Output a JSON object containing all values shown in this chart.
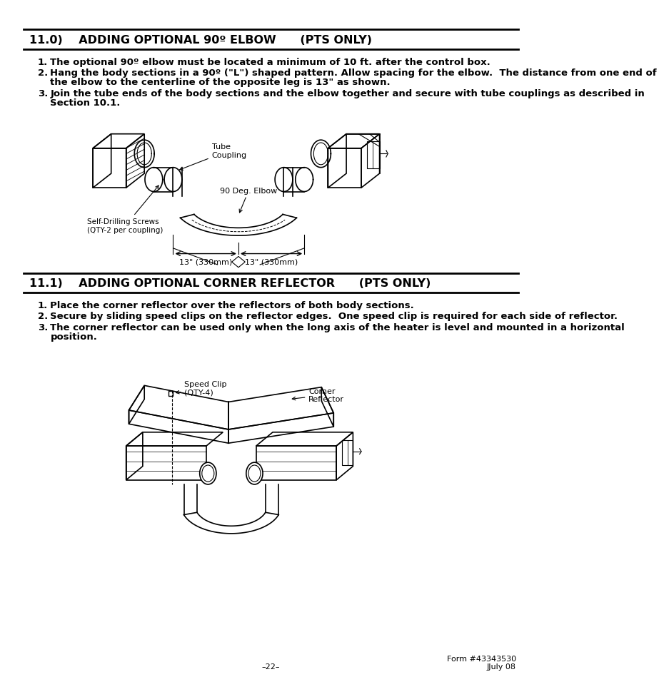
{
  "bg_color": "#ffffff",
  "section1_title": "11.0)    ADDING OPTIONAL 90º ELBOW      (PTS ONLY)",
  "section1_items": [
    "The optional 90º elbow must be located a minimum of 10 ft. after the control box.",
    "Hang the body sections in a 90º (\"L\") shaped pattern. Allow spacing for the elbow.  The distance from one end of\nthe elbow to the centerline of the opposite leg is 13\" as shown.",
    "Join the tube ends of the body sections and the elbow together and secure with tube couplings as described in\nSection 10.1."
  ],
  "section2_title": "11.1)    ADDING OPTIONAL CORNER REFLECTOR      (PTS ONLY)",
  "section2_items": [
    "Place the corner reflector over the reflectors of both body sections.",
    "Secure by sliding speed clips on the reflector edges.  One speed clip is required for each side of reflector.",
    "The corner reflector can be used only when the long axis of the heater is level and mounted in a horizontal\nposition."
  ],
  "footer_left": "–22–",
  "footer_right1": "Form #43343530",
  "footer_right2": "JJuly 08",
  "title_fontsize": 11.5,
  "body_fontsize": 9.5,
  "footer_fontsize": 8
}
